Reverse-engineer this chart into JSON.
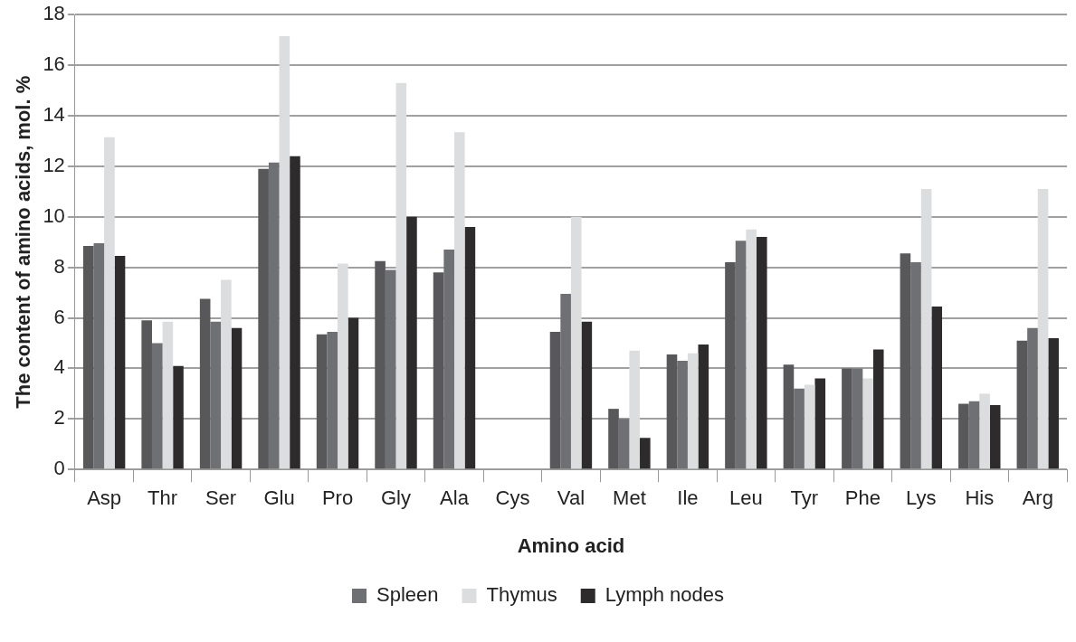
{
  "chart_data": {
    "type": "bar",
    "xlabel": "Amino acid",
    "ylabel": "The content of amino acids, mol. %",
    "categories": [
      "Asp",
      "Thr",
      "Ser",
      "Glu",
      "Pro",
      "Gly",
      "Ala",
      "Cys",
      "Val",
      "Met",
      "Ile",
      "Leu",
      "Tyr",
      "Phe",
      "Lys",
      "His",
      "Arg"
    ],
    "series": [
      {
        "color": "#58585a",
        "values": [
          8.85,
          5.9,
          6.75,
          11.9,
          5.35,
          8.25,
          7.8,
          null,
          5.45,
          2.4,
          4.55,
          8.2,
          4.15,
          4.0,
          8.55,
          2.6,
          5.1
        ]
      },
      {
        "name": "Spleen",
        "color": "#6f7073",
        "values": [
          8.95,
          5.0,
          5.85,
          12.15,
          5.45,
          7.9,
          8.7,
          null,
          6.95,
          2.0,
          4.3,
          9.05,
          3.2,
          4.0,
          8.2,
          2.7,
          5.6
        ]
      },
      {
        "name": "Thymus",
        "color": "#dcdddf",
        "values": [
          13.15,
          5.85,
          7.5,
          17.15,
          8.15,
          15.3,
          13.35,
          null,
          10.0,
          4.7,
          4.6,
          9.5,
          3.35,
          3.6,
          11.1,
          3.0,
          11.1
        ]
      },
      {
        "name": "Lymph nodes",
        "color": "#2d2b2c",
        "values": [
          8.45,
          4.1,
          5.6,
          12.4,
          6.0,
          10.0,
          9.6,
          null,
          5.85,
          1.25,
          4.95,
          9.2,
          3.6,
          4.75,
          6.45,
          2.55,
          5.2
        ]
      }
    ],
    "ylim": [
      0,
      18
    ],
    "yticks": [
      0,
      2,
      4,
      6,
      8,
      10,
      12,
      14,
      16,
      18
    ],
    "grid": "y",
    "legend": "bottom"
  }
}
